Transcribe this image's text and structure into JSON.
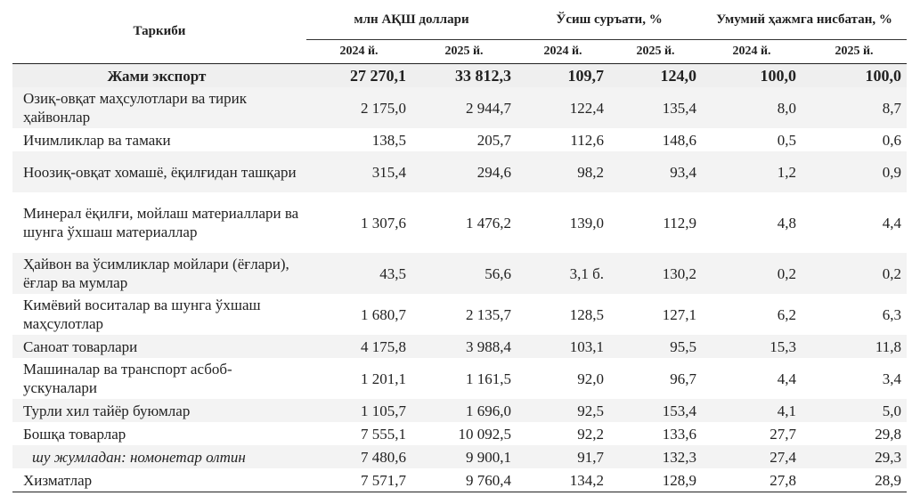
{
  "header": {
    "composition": "Таркиби",
    "groups": [
      "млн АҚШ доллари",
      "Ўсиш суръати, %",
      "Умумий ҳажмга нисбатан, %"
    ],
    "years": [
      "2024 й.",
      "2025 й.",
      "2024 й.",
      "2025 й.",
      "2024 й.",
      "2025 й."
    ]
  },
  "total": {
    "name": "Жами экспорт",
    "values": [
      "27 270,1",
      "33 812,3",
      "109,7",
      "124,0",
      "100,0",
      "100,0"
    ]
  },
  "rows": [
    {
      "name": "Озиқ-овқат маҳсулотлари ва тирик ҳайвонлар",
      "values": [
        "2 175,0",
        "2 944,7",
        "122,4",
        "135,4",
        "8,0",
        "8,7"
      ]
    },
    {
      "name": "Ичимликлар ва тамаки",
      "values": [
        "138,5",
        "205,7",
        "112,6",
        "148,6",
        "0,5",
        "0,6"
      ]
    },
    {
      "name": "Ноозиқ-овқат хомашё, ёқилғидан ташқари",
      "values": [
        "315,4",
        "294,6",
        "98,2",
        "93,4",
        "1,2",
        "0,9"
      ]
    },
    {
      "name": "Минерал ёқилғи, мойлаш материаллари ва шунга ўхшаш материаллар",
      "values": [
        "1 307,6",
        "1 476,2",
        "139,0",
        "112,9",
        "4,8",
        "4,4"
      ]
    },
    {
      "name": "Ҳайвон ва ўсимликлар мойлари (ёғлари), ёғлар ва мумлар",
      "values": [
        "43,5",
        "56,6",
        "3,1 б.",
        "130,2",
        "0,2",
        "0,2"
      ]
    },
    {
      "name": "Кимёвий воситалар ва шунга ўхшаш маҳсулотлар",
      "values": [
        "1 680,7",
        "2 135,7",
        "128,5",
        "127,1",
        "6,2",
        "6,3"
      ]
    },
    {
      "name": "Саноат товарлари",
      "values": [
        "4 175,8",
        "3 988,4",
        "103,1",
        "95,5",
        "15,3",
        "11,8"
      ]
    },
    {
      "name": "Машиналар ва транспорт асбоб-ускуналари",
      "values": [
        "1 201,1",
        "1 161,5",
        "92,0",
        "96,7",
        "4,4",
        "3,4"
      ]
    },
    {
      "name": "Турли хил тайёр буюмлар",
      "values": [
        "1 105,7",
        "1 696,0",
        "92,5",
        "153,4",
        "4,1",
        "5,0"
      ]
    },
    {
      "name": "Бошқа товарлар",
      "values": [
        "7 555,1",
        "10 092,5",
        "92,2",
        "133,6",
        "27,7",
        "29,8"
      ]
    },
    {
      "name": "шу жумладан: номонетар олтин",
      "values": [
        "7 480,6",
        "9 900,1",
        "91,7",
        "132,3",
        "27,4",
        "29,3"
      ]
    },
    {
      "name": "Хизматлар",
      "values": [
        "7 571,7",
        "9 760,4",
        "134,2",
        "128,9",
        "27,8",
        "28,9"
      ]
    }
  ]
}
